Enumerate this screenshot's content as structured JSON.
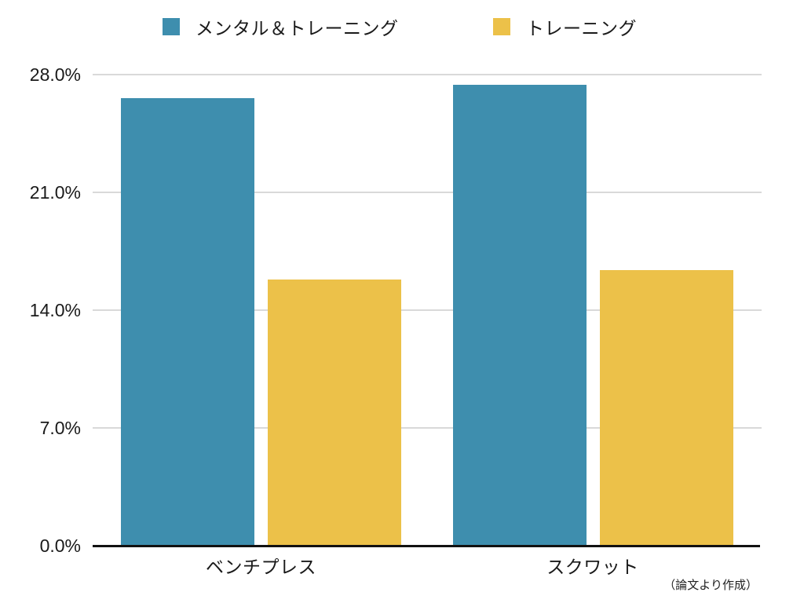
{
  "chart_data": {
    "type": "bar",
    "title": "",
    "categories": [
      "ベンチプレス",
      "スクワット"
    ],
    "series": [
      {
        "name": "メンタル＆トレーニング",
        "color": "#3E8EAE",
        "values": [
          26.6,
          27.4
        ]
      },
      {
        "name": "トレーニング",
        "color": "#ECC149",
        "values": [
          15.8,
          16.4
        ]
      }
    ],
    "xlabel": "",
    "ylabel": "",
    "ylim": [
      0,
      28
    ],
    "yticks": [
      {
        "value": 0,
        "label": "0.0%"
      },
      {
        "value": 7,
        "label": "7.0%"
      },
      {
        "value": 14,
        "label": "14.0%"
      },
      {
        "value": 21,
        "label": "21.0%"
      },
      {
        "value": 28,
        "label": "28.0%"
      }
    ],
    "grid": "horizontal",
    "legend_position": "top",
    "annotation": "（論文より作成）",
    "colors": {
      "gridline": "#D9D9D9",
      "axis": "#111111",
      "text": "#1A1A1A",
      "background": "#FFFFFF"
    }
  }
}
